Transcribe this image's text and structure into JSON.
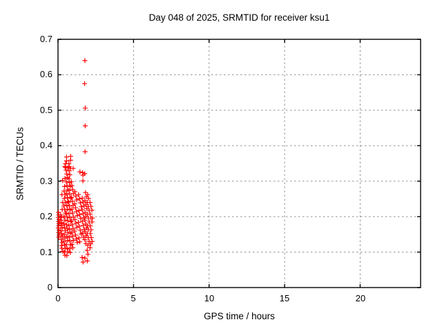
{
  "chart_data": {
    "type": "scatter",
    "title": "Day 048 of 2025, SRMTID for receiver ksu1",
    "xlabel": "GPS time / hours",
    "ylabel": "SRMTID / TECUs",
    "xlim": [
      0,
      24
    ],
    "ylim": [
      0,
      0.7
    ],
    "xticks": [
      0,
      5,
      10,
      15,
      20
    ],
    "yticks": [
      0,
      0.1,
      0.2,
      0.3,
      0.4,
      0.5,
      0.6,
      0.7
    ],
    "grid": true,
    "legend": "none",
    "marker": {
      "shape": "plus",
      "name": "plus-marker-icon",
      "color": "#ff0000",
      "size": 7
    },
    "colors": {
      "border": "#000000",
      "grid": "#909090",
      "text": "#000000",
      "background": "#ffffff"
    },
    "points": [
      [
        0.03,
        0.212
      ],
      [
        0.05,
        0.205
      ],
      [
        0.02,
        0.198
      ],
      [
        0.06,
        0.192
      ],
      [
        0.03,
        0.186
      ],
      [
        0.07,
        0.18
      ],
      [
        0.04,
        0.174
      ],
      [
        0.02,
        0.168
      ],
      [
        0.06,
        0.162
      ],
      [
        0.04,
        0.155
      ],
      [
        0.07,
        0.148
      ],
      [
        0.05,
        0.142
      ],
      [
        0.18,
        0.205
      ],
      [
        0.22,
        0.198
      ],
      [
        0.16,
        0.19
      ],
      [
        0.25,
        0.183
      ],
      [
        0.2,
        0.176
      ],
      [
        0.28,
        0.168
      ],
      [
        0.17,
        0.16
      ],
      [
        0.24,
        0.152
      ],
      [
        0.3,
        0.144
      ],
      [
        0.21,
        0.136
      ],
      [
        0.27,
        0.127
      ],
      [
        0.23,
        0.118
      ],
      [
        0.3,
        0.302
      ],
      [
        0.26,
        0.262
      ],
      [
        0.31,
        0.24
      ],
      [
        0.28,
        0.22
      ],
      [
        0.25,
        0.111
      ],
      [
        0.32,
        0.102
      ],
      [
        0.46,
        0.341
      ],
      [
        0.5,
        0.349
      ],
      [
        0.5,
        0.339
      ],
      [
        0.46,
        0.308
      ],
      [
        0.44,
        0.285
      ],
      [
        0.4,
        0.272
      ],
      [
        0.47,
        0.262
      ],
      [
        0.42,
        0.251
      ],
      [
        0.48,
        0.24
      ],
      [
        0.38,
        0.23
      ],
      [
        0.44,
        0.22
      ],
      [
        0.5,
        0.21
      ],
      [
        0.4,
        0.2
      ],
      [
        0.46,
        0.19
      ],
      [
        0.38,
        0.18
      ],
      [
        0.43,
        0.17
      ],
      [
        0.49,
        0.16
      ],
      [
        0.41,
        0.15
      ],
      [
        0.46,
        0.14
      ],
      [
        0.39,
        0.13
      ],
      [
        0.44,
        0.12
      ],
      [
        0.48,
        0.11
      ],
      [
        0.42,
        0.1
      ],
      [
        0.46,
        0.091
      ],
      [
        0.56,
        0.368
      ],
      [
        0.56,
        0.357
      ],
      [
        0.53,
        0.331
      ],
      [
        0.58,
        0.32
      ],
      [
        0.62,
        0.31
      ],
      [
        0.55,
        0.298
      ],
      [
        0.6,
        0.287
      ],
      [
        0.64,
        0.276
      ],
      [
        0.57,
        0.265
      ],
      [
        0.62,
        0.254
      ],
      [
        0.66,
        0.243
      ],
      [
        0.58,
        0.232
      ],
      [
        0.63,
        0.221
      ],
      [
        0.55,
        0.21
      ],
      [
        0.6,
        0.199
      ],
      [
        0.65,
        0.188
      ],
      [
        0.56,
        0.177
      ],
      [
        0.61,
        0.166
      ],
      [
        0.66,
        0.155
      ],
      [
        0.58,
        0.144
      ],
      [
        0.63,
        0.133
      ],
      [
        0.55,
        0.122
      ],
      [
        0.6,
        0.111
      ],
      [
        0.65,
        0.101
      ],
      [
        0.58,
        0.09
      ],
      [
        0.65,
        0.338
      ],
      [
        0.84,
        0.37
      ],
      [
        0.83,
        0.359
      ],
      [
        0.72,
        0.349
      ],
      [
        0.74,
        0.341
      ],
      [
        0.84,
        0.336
      ],
      [
        0.74,
        0.329
      ],
      [
        0.78,
        0.318
      ],
      [
        0.72,
        0.307
      ],
      [
        0.76,
        0.296
      ],
      [
        0.81,
        0.285
      ],
      [
        0.73,
        0.274
      ],
      [
        0.78,
        0.263
      ],
      [
        0.83,
        0.252
      ],
      [
        0.71,
        0.241
      ],
      [
        0.76,
        0.23
      ],
      [
        0.81,
        0.219
      ],
      [
        0.73,
        0.208
      ],
      [
        0.78,
        0.197
      ],
      [
        0.84,
        0.186
      ],
      [
        0.72,
        0.175
      ],
      [
        0.77,
        0.164
      ],
      [
        0.82,
        0.153
      ],
      [
        0.74,
        0.142
      ],
      [
        0.79,
        0.131
      ],
      [
        0.84,
        0.12
      ],
      [
        0.76,
        0.109
      ],
      [
        0.81,
        0.099
      ],
      [
        1.0,
        0.336
      ],
      [
        0.88,
        0.298
      ],
      [
        0.92,
        0.287
      ],
      [
        0.97,
        0.276
      ],
      [
        1.03,
        0.265
      ],
      [
        0.9,
        0.254
      ],
      [
        0.95,
        0.243
      ],
      [
        1.0,
        0.232
      ],
      [
        0.92,
        0.221
      ],
      [
        0.97,
        0.21
      ],
      [
        1.02,
        0.199
      ],
      [
        0.89,
        0.188
      ],
      [
        0.94,
        0.177
      ],
      [
        1.0,
        0.166
      ],
      [
        0.91,
        0.155
      ],
      [
        0.96,
        0.144
      ],
      [
        1.02,
        0.133
      ],
      [
        0.93,
        0.122
      ],
      [
        0.98,
        0.112
      ],
      [
        1.12,
        0.27
      ],
      [
        1.18,
        0.258
      ],
      [
        1.24,
        0.247
      ],
      [
        1.1,
        0.236
      ],
      [
        1.16,
        0.225
      ],
      [
        1.22,
        0.214
      ],
      [
        1.28,
        0.203
      ],
      [
        1.12,
        0.192
      ],
      [
        1.18,
        0.181
      ],
      [
        1.25,
        0.17
      ],
      [
        1.1,
        0.159
      ],
      [
        1.16,
        0.148
      ],
      [
        1.22,
        0.137
      ],
      [
        1.28,
        0.127
      ],
      [
        1.45,
        0.326
      ],
      [
        1.36,
        0.262
      ],
      [
        1.42,
        0.25
      ],
      [
        1.48,
        0.239
      ],
      [
        1.54,
        0.228
      ],
      [
        1.38,
        0.217
      ],
      [
        1.44,
        0.206
      ],
      [
        1.5,
        0.195
      ],
      [
        1.35,
        0.184
      ],
      [
        1.41,
        0.173
      ],
      [
        1.47,
        0.162
      ],
      [
        1.53,
        0.151
      ],
      [
        1.38,
        0.14
      ],
      [
        1.44,
        0.129
      ],
      [
        1.63,
        0.324
      ],
      [
        1.65,
        0.317
      ],
      [
        1.65,
        0.301
      ],
      [
        1.6,
        0.252
      ],
      [
        1.66,
        0.241
      ],
      [
        1.72,
        0.23
      ],
      [
        1.6,
        0.219
      ],
      [
        1.66,
        0.208
      ],
      [
        1.72,
        0.197
      ],
      [
        1.61,
        0.186
      ],
      [
        1.67,
        0.175
      ],
      [
        1.73,
        0.164
      ],
      [
        1.62,
        0.153
      ],
      [
        1.68,
        0.142
      ],
      [
        1.6,
        0.085
      ],
      [
        1.66,
        0.072
      ],
      [
        1.78,
        0.64
      ],
      [
        1.76,
        0.575
      ],
      [
        1.8,
        0.506
      ],
      [
        1.8,
        0.456
      ],
      [
        1.79,
        0.383
      ],
      [
        1.77,
        0.321
      ],
      [
        1.82,
        0.268
      ],
      [
        1.88,
        0.256
      ],
      [
        1.78,
        0.245
      ],
      [
        1.84,
        0.234
      ],
      [
        1.9,
        0.223
      ],
      [
        1.79,
        0.212
      ],
      [
        1.85,
        0.201
      ],
      [
        1.78,
        0.19
      ],
      [
        1.84,
        0.179
      ],
      [
        1.9,
        0.168
      ],
      [
        1.8,
        0.157
      ],
      [
        1.86,
        0.146
      ],
      [
        1.78,
        0.135
      ],
      [
        1.84,
        0.124
      ],
      [
        1.78,
        0.083
      ],
      [
        1.96,
        0.262
      ],
      [
        2.02,
        0.251
      ],
      [
        1.94,
        0.24
      ],
      [
        2.0,
        0.229
      ],
      [
        2.06,
        0.218
      ],
      [
        1.95,
        0.207
      ],
      [
        2.01,
        0.196
      ],
      [
        2.07,
        0.185
      ],
      [
        1.96,
        0.174
      ],
      [
        2.02,
        0.163
      ],
      [
        1.94,
        0.152
      ],
      [
        2.0,
        0.141
      ],
      [
        2.06,
        0.13
      ],
      [
        1.97,
        0.119
      ],
      [
        1.93,
        0.105
      ],
      [
        1.98,
        0.094
      ],
      [
        1.94,
        0.075
      ],
      [
        2.12,
        0.24
      ],
      [
        2.18,
        0.229
      ],
      [
        2.24,
        0.218
      ],
      [
        2.12,
        0.207
      ],
      [
        2.18,
        0.196
      ],
      [
        2.25,
        0.185
      ],
      [
        2.13,
        0.174
      ],
      [
        2.19,
        0.163
      ],
      [
        2.14,
        0.152
      ],
      [
        2.2,
        0.141
      ],
      [
        2.16,
        0.123
      ],
      [
        2.12,
        0.112
      ],
      [
        2.26,
        0.13
      ],
      [
        2.28,
        0.196
      ]
    ]
  }
}
